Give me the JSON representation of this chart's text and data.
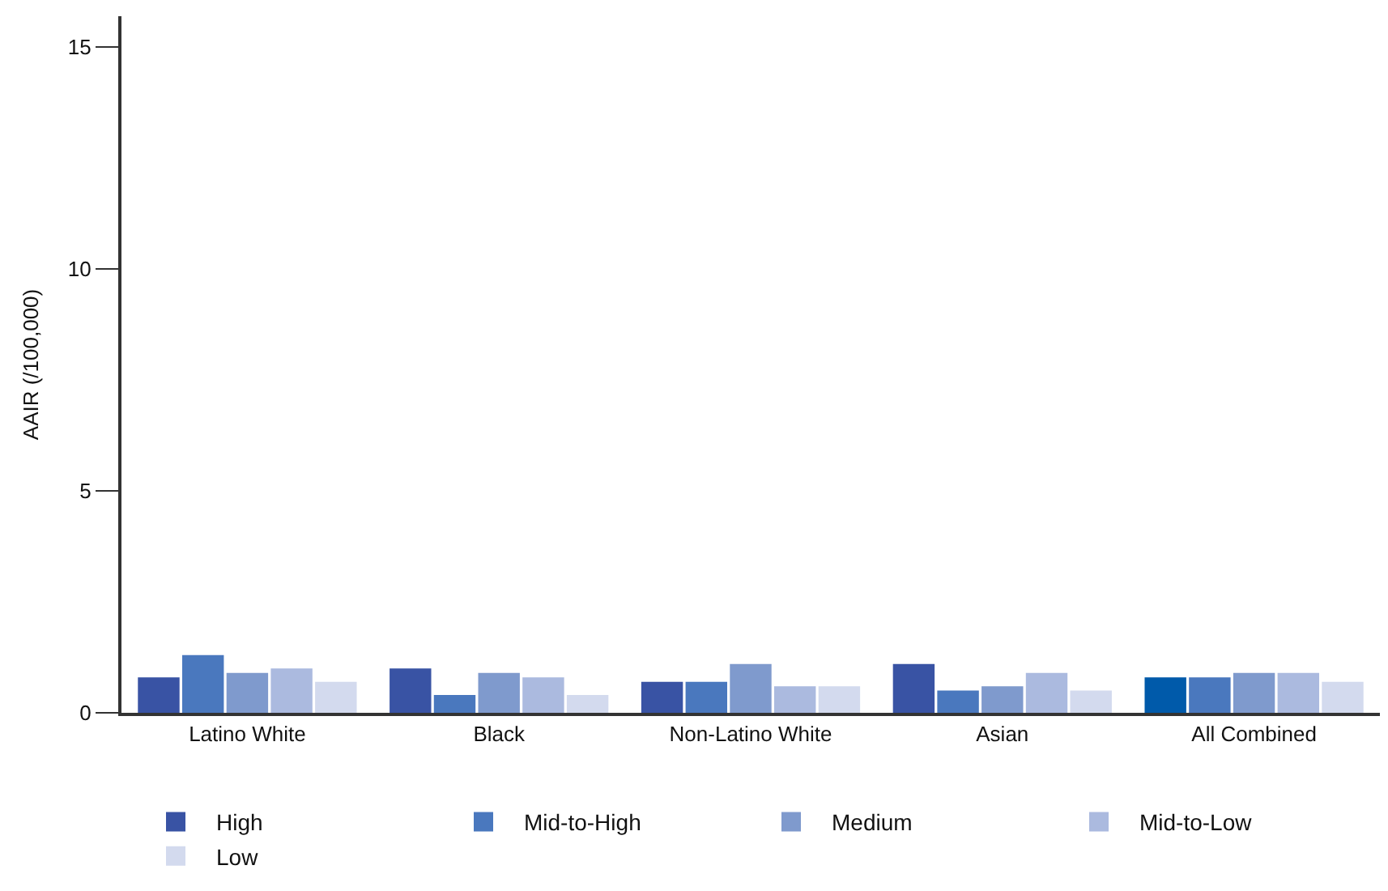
{
  "chart_data": {
    "type": "bar",
    "ylabel": "AAIR (/100,000)",
    "categories": [
      "Latino White",
      "Black",
      "Non-Latino White",
      "Asian",
      "All Combined"
    ],
    "series": [
      {
        "name": "High",
        "color": "#3953a4",
        "colors": [
          "#3953a4",
          "#3953a4",
          "#3953a4",
          "#3953a4",
          "#005aaa"
        ],
        "values": [
          0.8,
          1.0,
          0.7,
          1.1,
          0.8
        ]
      },
      {
        "name": "Mid-to-High",
        "color": "#4a78be",
        "values": [
          1.3,
          0.4,
          0.7,
          0.5,
          0.8
        ]
      },
      {
        "name": "Medium",
        "color": "#7f9acd",
        "values": [
          0.9,
          0.9,
          1.1,
          0.6,
          0.9
        ]
      },
      {
        "name": "Mid-to-Low",
        "color": "#abbadf",
        "values": [
          1.0,
          0.8,
          0.6,
          0.9,
          0.9
        ]
      },
      {
        "name": "Low",
        "color": "#d3daee",
        "values": [
          0.7,
          0.4,
          0.6,
          0.5,
          0.7
        ]
      }
    ],
    "ylim": [
      0,
      15.7
    ],
    "yticks": [
      0,
      5,
      10,
      15
    ],
    "legend": "bottom"
  }
}
